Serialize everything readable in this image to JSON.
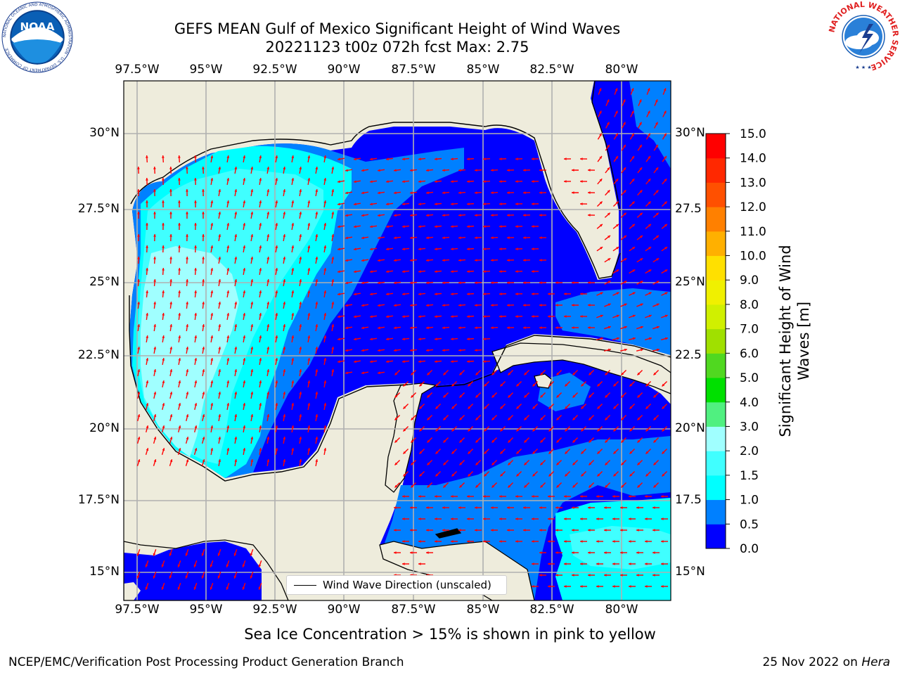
{
  "header": {
    "title_line1": "GEFS MEAN Gulf of Mexico Significant Height of Wind Waves",
    "title_line2": "20221123 t00z 072h fcst   Max: 2.75"
  },
  "logos": {
    "noaa_text": "NOAA",
    "noaa_ring_text": "NATIONAL OCEANIC AND ATMOSPHERIC ADMINISTRATION · U.S. DEPARTMENT OF COMMERCE",
    "nws_ring_text": "NATIONAL WEATHER SERVICE"
  },
  "map": {
    "lon_labels": [
      "97.5°W",
      "95°W",
      "92.5°W",
      "90°W",
      "87.5°W",
      "85°W",
      "82.5°W",
      "80°W"
    ],
    "lat_labels_left": [
      "30°N",
      "27.5°N",
      "25°N",
      "22.5°N",
      "20°N",
      "17.5°N",
      "15°N"
    ],
    "lat_labels_right": [
      "30°N",
      "27.5",
      "25°N",
      "22.5",
      "20°N",
      "17.5",
      "15°N"
    ],
    "legend_label": "Wind Wave Direction (unscaled)",
    "colors": {
      "land": "#eeecdc",
      "grid": "#b0b0b0",
      "arrow": "#ff0000"
    }
  },
  "colorbar": {
    "label": "Significant Height of Wind Waves [m]",
    "label_line1": "Significant Height of Wind",
    "label_line2": "Waves [m]",
    "ticks": [
      "0.0",
      "0.5",
      "1.0",
      "1.5",
      "2.0",
      "3.0",
      "4.0",
      "5.0",
      "6.0",
      "7.0",
      "8.0",
      "9.0",
      "10.0",
      "11.0",
      "12.0",
      "13.0",
      "14.0",
      "15.0"
    ],
    "colors": [
      "#0000ff",
      "#0080ff",
      "#00ffff",
      "#40ffff",
      "#a0ffff",
      "#50f080",
      "#00e000",
      "#50d820",
      "#a0e000",
      "#d0f000",
      "#f0f000",
      "#ffe000",
      "#ffb000",
      "#ff8000",
      "#ff5000",
      "#ff2800",
      "#ff0000"
    ]
  },
  "footer": {
    "note": "Sea Ice Concentration > 15% is shown in pink to yellow",
    "credit_left": "NCEP/EMC/Verification Post Processing Product Generation Branch",
    "credit_right_prefix": "25 Nov 2022 on ",
    "credit_right_machine": "Hera"
  }
}
